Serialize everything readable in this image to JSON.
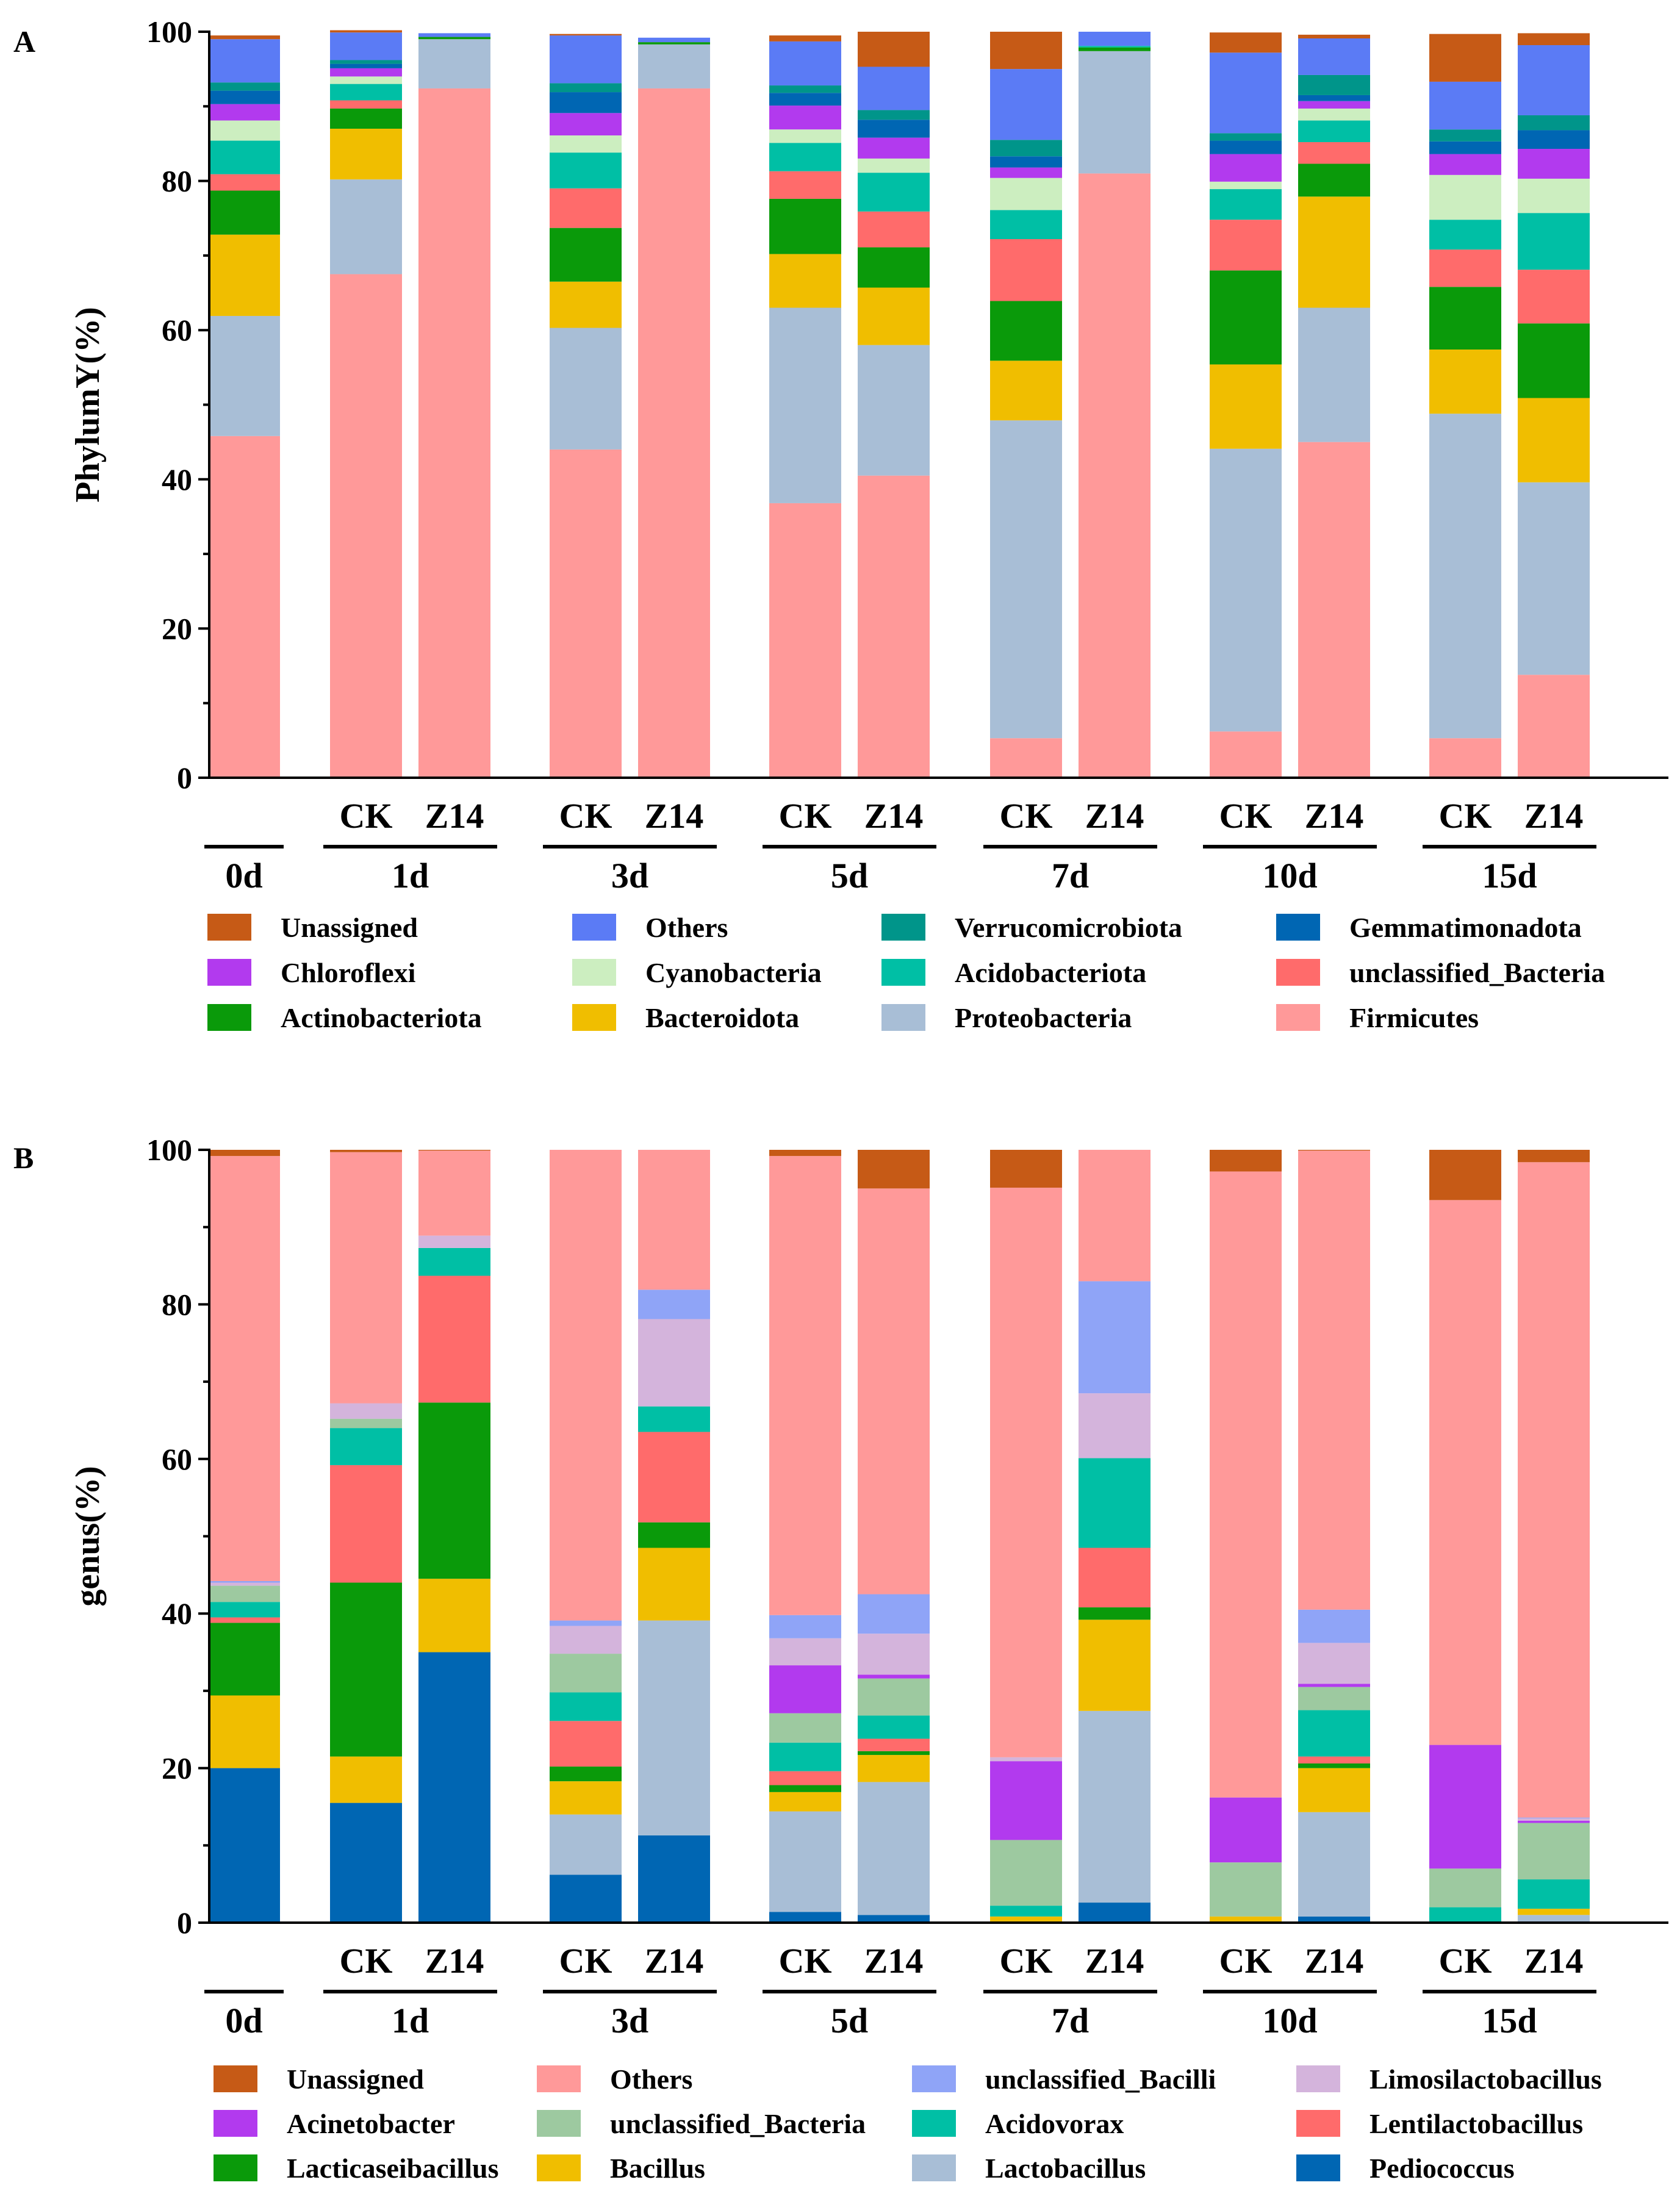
{
  "figure": {
    "panel_labels": [
      "A",
      "B"
    ]
  },
  "chart_data": [
    {
      "panel": "A",
      "type": "bar",
      "stacked": true,
      "ylabel": "PhylumY(%)",
      "ylim": [
        0,
        100
      ],
      "yticks": [
        0,
        20,
        40,
        60,
        80,
        100
      ],
      "columns": [
        "0d",
        "1d CK",
        "1d Z14",
        "3d CK",
        "3d Z14",
        "5d CK",
        "5d Z14",
        "7d CK",
        "7d Z14",
        "10d CK",
        "10d Z14",
        "15d CK",
        "15d Z14"
      ],
      "groups": [
        {
          "label": "0d",
          "subs": []
        },
        {
          "label": "1d",
          "subs": [
            "CK",
            "Z14"
          ]
        },
        {
          "label": "3d",
          "subs": [
            "CK",
            "Z14"
          ]
        },
        {
          "label": "5d",
          "subs": [
            "CK",
            "Z14"
          ]
        },
        {
          "label": "7d",
          "subs": [
            "CK",
            "Z14"
          ]
        },
        {
          "label": "10d",
          "subs": [
            "CK",
            "Z14"
          ]
        },
        {
          "label": "15d",
          "subs": [
            "CK",
            "Z14"
          ]
        }
      ],
      "series": [
        {
          "name": "Firmicutes",
          "color": "#FF9999",
          "values": [
            45.8,
            67.5,
            92.4,
            44.0,
            92.4,
            36.8,
            40.5,
            5.3,
            81.0,
            6.2,
            45.0,
            5.3,
            13.8
          ]
        },
        {
          "name": "Proteobacteria",
          "color": "#A8BED6",
          "values": [
            16.1,
            12.7,
            6.6,
            16.3,
            5.9,
            26.2,
            17.5,
            42.6,
            16.4,
            37.9,
            18.0,
            43.5,
            25.8
          ]
        },
        {
          "name": "Bacteroidota",
          "color": "#F0BE00",
          "values": [
            10.9,
            6.8,
            0.0,
            6.2,
            0.0,
            7.2,
            7.7,
            8.0,
            0.0,
            11.3,
            14.9,
            8.6,
            11.3
          ]
        },
        {
          "name": "Actinobacteriota",
          "color": "#0A9A0A",
          "values": [
            5.9,
            2.7,
            0.3,
            7.2,
            0.3,
            7.4,
            5.4,
            8.0,
            0.5,
            12.6,
            4.4,
            8.4,
            10.0
          ]
        },
        {
          "name": "unclassified_Bacteria",
          "color": "#FF6B6B",
          "values": [
            2.2,
            1.1,
            0.0,
            5.3,
            0.0,
            3.7,
            4.8,
            8.3,
            0.0,
            6.8,
            2.9,
            5.0,
            7.2
          ]
        },
        {
          "name": "Acidobacteriota",
          "color": "#00BFA5",
          "values": [
            4.5,
            2.2,
            0.0,
            4.8,
            0.0,
            3.8,
            5.2,
            3.9,
            0.2,
            4.1,
            2.9,
            4.0,
            7.6
          ]
        },
        {
          "name": "Cyanobacteria",
          "color": "#CCEEC0",
          "values": [
            2.7,
            1.0,
            0.0,
            2.3,
            0.0,
            1.8,
            1.9,
            4.3,
            0.0,
            1.0,
            1.6,
            6.0,
            4.6
          ]
        },
        {
          "name": "Chloroflexi",
          "color": "#B23AEE",
          "values": [
            2.2,
            1.1,
            0.0,
            3.0,
            0.0,
            3.2,
            2.8,
            1.4,
            0.0,
            3.7,
            1.0,
            2.8,
            4.0
          ]
        },
        {
          "name": "Gemmatimonadota",
          "color": "#0066B3",
          "values": [
            1.8,
            0.6,
            0.0,
            2.8,
            0.0,
            1.7,
            2.4,
            1.5,
            0.0,
            1.8,
            0.8,
            1.7,
            2.5
          ]
        },
        {
          "name": "Verrucomicrobiota",
          "color": "#00958A",
          "values": [
            1.1,
            0.5,
            0.0,
            1.2,
            0.0,
            1.0,
            1.3,
            2.2,
            0.0,
            1.0,
            2.7,
            1.6,
            2.0
          ]
        },
        {
          "name": "Others",
          "color": "#5B7BF5",
          "values": [
            5.8,
            3.7,
            0.5,
            6.4,
            0.6,
            5.9,
            5.8,
            9.5,
            1.9,
            10.8,
            4.9,
            6.4,
            9.4
          ]
        },
        {
          "name": "Unassigned",
          "color": "#C65A16",
          "values": [
            0.5,
            0.3,
            0.0,
            0.2,
            0.0,
            0.8,
            4.7,
            5.0,
            0.0,
            2.7,
            0.5,
            6.4,
            1.6
          ]
        }
      ],
      "legend": [
        "Unassigned",
        "Others",
        "Verrucomicrobiota",
        "Gemmatimonadota",
        "Chloroflexi",
        "Cyanobacteria",
        "Acidobacteriota",
        "unclassified_Bacteria",
        "Actinobacteriota",
        "Bacteroidota",
        "Proteobacteria",
        "Firmicutes"
      ]
    },
    {
      "panel": "B",
      "type": "bar",
      "stacked": true,
      "ylabel": "genus(%)",
      "ylim": [
        0,
        100
      ],
      "yticks": [
        0,
        20,
        40,
        60,
        80,
        100
      ],
      "columns": [
        "0d",
        "1d CK",
        "1d Z14",
        "3d CK",
        "3d Z14",
        "5d CK",
        "5d Z14",
        "7d CK",
        "7d Z14",
        "10d CK",
        "10d Z14",
        "15d CK",
        "15d Z14"
      ],
      "groups": [
        {
          "label": "0d",
          "subs": []
        },
        {
          "label": "1d",
          "subs": [
            "CK",
            "Z14"
          ]
        },
        {
          "label": "3d",
          "subs": [
            "CK",
            "Z14"
          ]
        },
        {
          "label": "5d",
          "subs": [
            "CK",
            "Z14"
          ]
        },
        {
          "label": "7d",
          "subs": [
            "CK",
            "Z14"
          ]
        },
        {
          "label": "10d",
          "subs": [
            "CK",
            "Z14"
          ]
        },
        {
          "label": "15d",
          "subs": [
            "CK",
            "Z14"
          ]
        }
      ],
      "series": [
        {
          "name": "Pediococcus",
          "color": "#0066B3",
          "values": [
            20.0,
            15.5,
            35.0,
            6.2,
            11.3,
            1.4,
            1.0,
            0.0,
            2.6,
            0.0,
            0.8,
            0.0,
            0.0
          ]
        },
        {
          "name": "Lactobacillus",
          "color": "#A8BED6",
          "values": [
            0.0,
            0.0,
            0.0,
            7.8,
            27.8,
            13.0,
            17.2,
            0.0,
            24.8,
            0.0,
            13.5,
            0.0,
            1.0
          ]
        },
        {
          "name": "Bacillus",
          "color": "#F0BE00",
          "values": [
            9.4,
            6.0,
            9.5,
            4.3,
            9.4,
            2.5,
            3.5,
            0.8,
            11.8,
            0.8,
            5.7,
            0.0,
            0.8
          ]
        },
        {
          "name": "Lacticaseibacillus",
          "color": "#0A9A0A",
          "values": [
            9.4,
            22.5,
            22.8,
            1.9,
            3.3,
            0.9,
            0.5,
            0.0,
            1.6,
            0.0,
            0.6,
            0.0,
            0.0
          ]
        },
        {
          "name": "Lentilactobacillus",
          "color": "#FF6B6B",
          "values": [
            0.7,
            15.2,
            16.4,
            5.9,
            11.7,
            1.8,
            1.6,
            0.0,
            7.7,
            0.0,
            0.9,
            0.0,
            0.0
          ]
        },
        {
          "name": "Acidovorax",
          "color": "#00BFA5",
          "values": [
            2.0,
            4.8,
            3.6,
            3.7,
            3.3,
            3.7,
            3.0,
            1.4,
            11.6,
            0.0,
            6.0,
            2.0,
            3.8
          ]
        },
        {
          "name": "unclassified_Bacteria",
          "color": "#9DC9A0",
          "values": [
            2.1,
            1.2,
            0.0,
            5.0,
            0.0,
            3.8,
            4.8,
            8.5,
            0.0,
            7.0,
            3.0,
            5.0,
            7.3
          ]
        },
        {
          "name": "Acinetobacter",
          "color": "#B23AEE",
          "values": [
            0.0,
            0.0,
            0.0,
            0.0,
            0.0,
            6.2,
            0.5,
            10.2,
            0.0,
            8.4,
            0.4,
            16.0,
            0.3
          ]
        },
        {
          "name": "Limosilactobacillus",
          "color": "#D4B4DC",
          "values": [
            0.4,
            2.0,
            1.6,
            3.6,
            11.3,
            3.5,
            5.3,
            0.5,
            8.4,
            0.0,
            5.3,
            0.0,
            0.3
          ]
        },
        {
          "name": "unclassified_Bacilli",
          "color": "#8FA4F7",
          "values": [
            0.2,
            0.0,
            0.0,
            0.7,
            3.8,
            3.0,
            5.1,
            0.0,
            14.5,
            0.0,
            4.3,
            0.0,
            0.1
          ]
        },
        {
          "name": "Others",
          "color": "#FF9999",
          "values": [
            55.0,
            32.5,
            11.0,
            60.9,
            18.1,
            59.4,
            52.5,
            73.7,
            17.0,
            81.0,
            59.4,
            70.5,
            84.8
          ]
        },
        {
          "name": "Unassigned",
          "color": "#C65A16",
          "values": [
            0.8,
            0.3,
            0.1,
            0.0,
            0.0,
            0.8,
            5.0,
            4.9,
            0.0,
            2.8,
            0.1,
            6.5,
            1.6
          ]
        }
      ],
      "legend": [
        "Unassigned",
        "Others",
        "unclassified_Bacilli",
        "Limosilactobacillus",
        "Acinetobacter",
        "unclassified_Bacteria",
        "Acidovorax",
        "Lentilactobacillus",
        "Lacticaseibacillus",
        "Bacillus",
        "Lactobacillus",
        "Pediococcus"
      ]
    }
  ]
}
